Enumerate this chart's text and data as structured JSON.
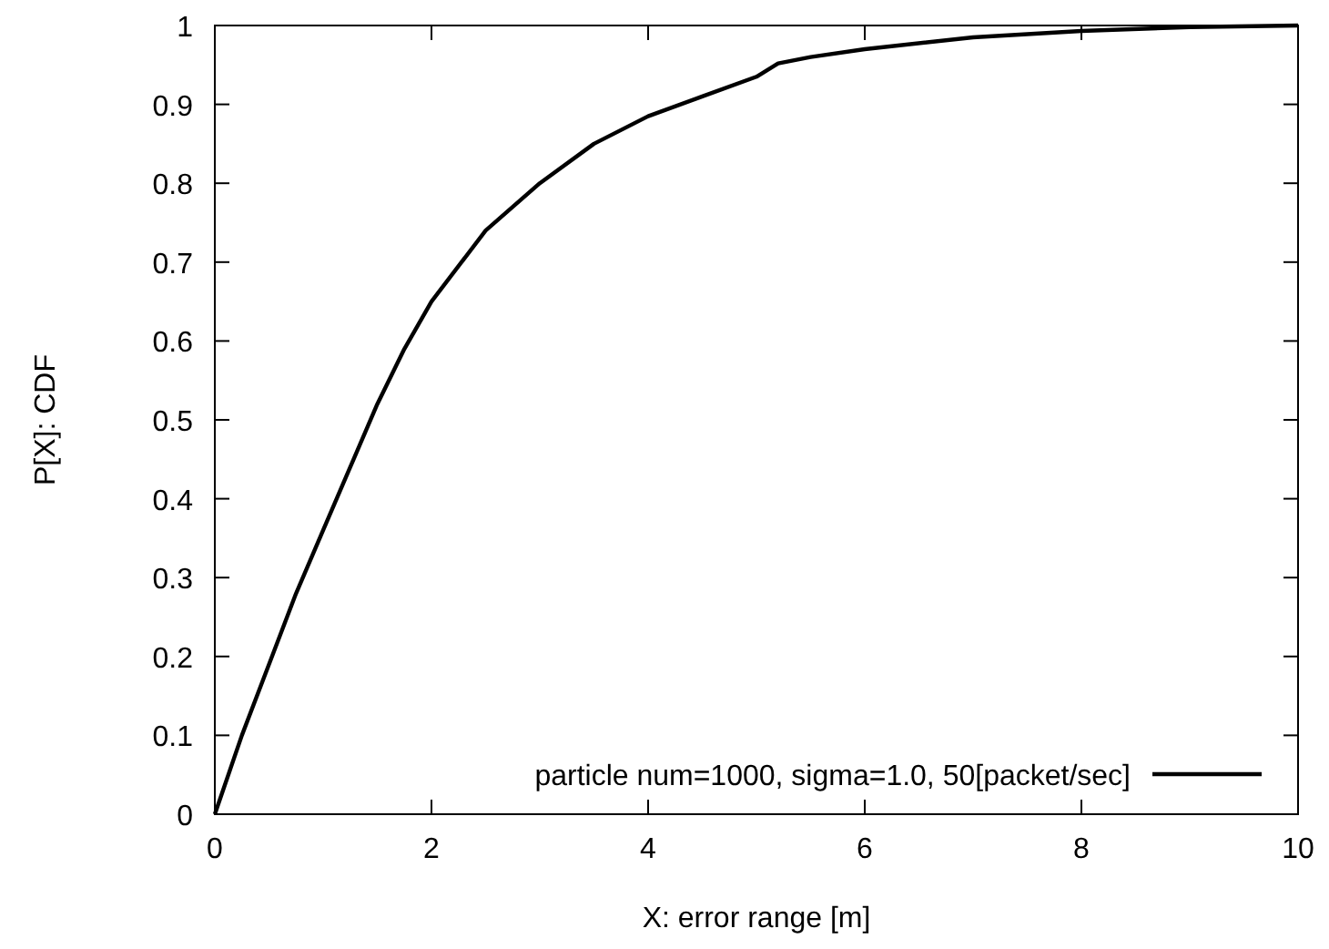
{
  "chart_data": {
    "type": "line",
    "xlabel": "X: error range [m]",
    "ylabel": "P[X]: CDF",
    "x": [
      0,
      0.25,
      0.5,
      0.75,
      1,
      1.25,
      1.5,
      1.75,
      2,
      2.5,
      3,
      3.5,
      4,
      4.5,
      5,
      5.2,
      5.5,
      6,
      7,
      8,
      9,
      10
    ],
    "series": [
      {
        "name": "particle num=1000, sigma=1.0, 50[packet/sec]",
        "color": "#000000",
        "values": [
          0,
          0.1,
          0.19,
          0.28,
          0.36,
          0.44,
          0.52,
          0.59,
          0.65,
          0.74,
          0.8,
          0.85,
          0.885,
          0.91,
          0.935,
          0.952,
          0.96,
          0.97,
          0.985,
          0.993,
          0.998,
          1
        ]
      }
    ],
    "xlim": [
      0,
      10
    ],
    "ylim": [
      0,
      1
    ],
    "xticks": [
      0,
      2,
      4,
      6,
      8,
      10
    ],
    "yticks": [
      0,
      0.1,
      0.2,
      0.3,
      0.4,
      0.5,
      0.6,
      0.7,
      0.8,
      0.9,
      1
    ],
    "grid": false,
    "legend": "bottom right",
    "marker": "none",
    "line_style": "solid"
  }
}
